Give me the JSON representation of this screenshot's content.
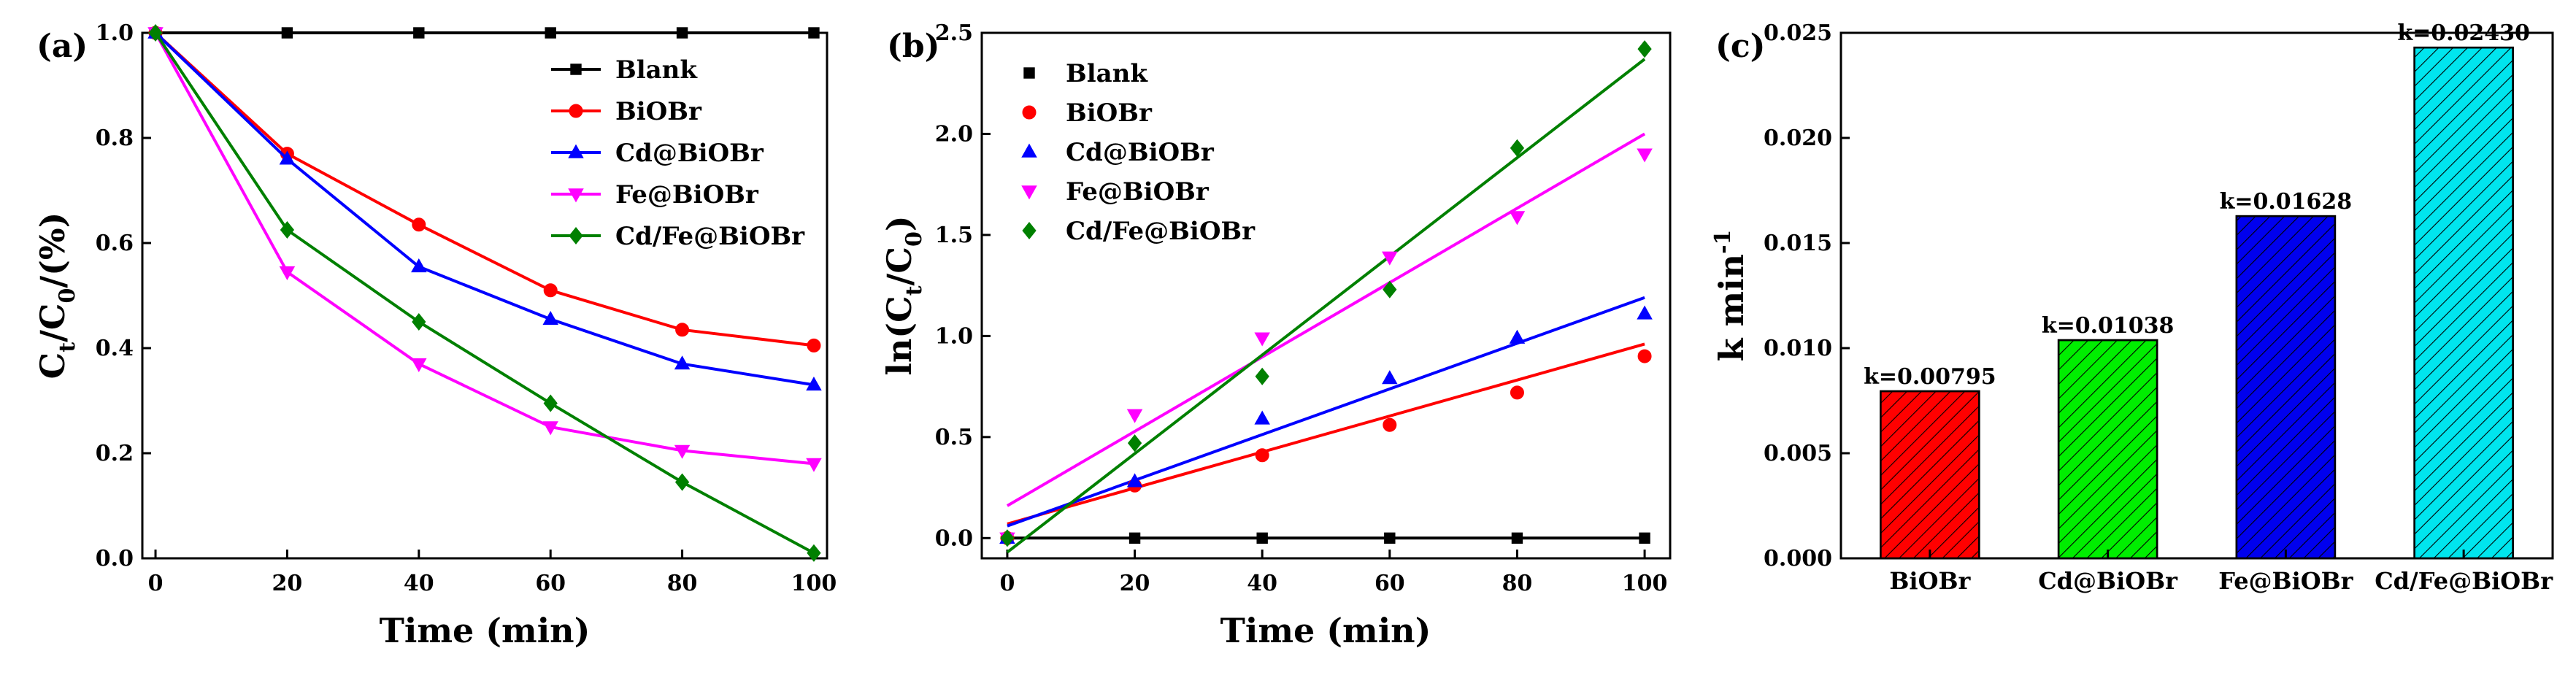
{
  "colors": {
    "Blank": "#000000",
    "BiOBr": "#ff0000",
    "Cd@BiOBr": "#0000ff",
    "Fe@BiOBr": "#ff00ff",
    "Cd/Fe@BiOBr": "#008000",
    "bar_BiOBr": "#ff0000",
    "bar_Cd@BiOBr": "#00ee00",
    "bar_Fe@BiOBr": "#0000ee",
    "bar_Cd/Fe@BiOBr": "#00e5ee"
  },
  "chart_data": [
    {
      "panel": "(a)",
      "type": "line",
      "xlabel": "Time (min)",
      "ylabel_main": "C",
      "ylabel_sub1": "t",
      "ylabel_mid": "/C",
      "ylabel_sub2": "0",
      "ylabel_tail": "/(%)",
      "xlim": [
        -2,
        102
      ],
      "ylim": [
        0.0,
        1.0
      ],
      "xticks": [
        0,
        20,
        40,
        60,
        80,
        100
      ],
      "yticks": [
        0.0,
        0.2,
        0.4,
        0.6,
        0.8,
        1.0
      ],
      "xtick_labels": [
        "0",
        "20",
        "40",
        "60",
        "80",
        "100"
      ],
      "ytick_labels": [
        "0.0",
        "0.2",
        "0.4",
        "0.6",
        "0.8",
        "1.0"
      ],
      "legend_position": "top-right",
      "x": [
        0,
        20,
        40,
        60,
        80,
        100
      ],
      "series": [
        {
          "name": "Blank",
          "marker": "square",
          "values": [
            1.0,
            1.0,
            1.0,
            1.0,
            1.0,
            1.0
          ]
        },
        {
          "name": "BiOBr",
          "marker": "circle",
          "values": [
            1.0,
            0.77,
            0.635,
            0.51,
            0.435,
            0.405
          ]
        },
        {
          "name": "Cd@BiOBr",
          "marker": "triangle-up",
          "values": [
            1.0,
            0.76,
            0.555,
            0.455,
            0.37,
            0.33
          ]
        },
        {
          "name": "Fe@BiOBr",
          "marker": "triangle-down",
          "values": [
            1.0,
            0.545,
            0.37,
            0.25,
            0.205,
            0.18
          ]
        },
        {
          "name": "Cd/Fe@BiOBr",
          "marker": "diamond",
          "values": [
            1.0,
            0.625,
            0.45,
            0.295,
            0.145,
            0.01
          ]
        }
      ]
    },
    {
      "panel": "(b)",
      "type": "scatter",
      "xlabel": "Time (min)",
      "ylabel_main": "ln(C",
      "ylabel_sub1": "t",
      "ylabel_mid": "/C",
      "ylabel_sub2": "0",
      "ylabel_tail": ")",
      "xlim": [
        -4,
        104
      ],
      "ylim": [
        -0.1,
        2.5
      ],
      "xticks": [
        0,
        20,
        40,
        60,
        80,
        100
      ],
      "yticks": [
        0.0,
        0.5,
        1.0,
        1.5,
        2.0,
        2.5
      ],
      "xtick_labels": [
        "0",
        "20",
        "40",
        "60",
        "80",
        "100"
      ],
      "ytick_labels": [
        "0.0",
        "0.5",
        "1.0",
        "1.5",
        "2.0",
        "2.5"
      ],
      "legend_position": "top-left",
      "x": [
        0,
        20,
        40,
        60,
        80,
        100
      ],
      "series": [
        {
          "name": "Blank",
          "marker": "square",
          "values": [
            0.0,
            0.0,
            0.0,
            0.0,
            0.0,
            0.0
          ],
          "fit": [
            0.0,
            0.0
          ]
        },
        {
          "name": "BiOBr",
          "marker": "circle",
          "values": [
            0.0,
            0.26,
            0.41,
            0.56,
            0.72,
            0.9
          ],
          "fit": [
            0.07,
            0.96
          ]
        },
        {
          "name": "Cd@BiOBr",
          "marker": "triangle-up",
          "values": [
            0.0,
            0.28,
            0.59,
            0.79,
            0.99,
            1.11
          ],
          "fit": [
            0.06,
            1.19
          ]
        },
        {
          "name": "Fe@BiOBr",
          "marker": "triangle-down",
          "values": [
            0.0,
            0.61,
            0.99,
            1.39,
            1.59,
            1.9
          ],
          "fit": [
            0.16,
            2.0
          ]
        },
        {
          "name": "Cd/Fe@BiOBr",
          "marker": "diamond",
          "values": [
            0.0,
            0.47,
            0.8,
            1.23,
            1.93,
            2.42
          ],
          "fit": [
            -0.07,
            2.37
          ]
        }
      ]
    },
    {
      "panel": "(c)",
      "type": "bar",
      "ylabel": "k min",
      "ylabel_sup": "-1",
      "ylim": [
        0.0,
        0.025
      ],
      "yticks": [
        0.0,
        0.005,
        0.01,
        0.015,
        0.02,
        0.025
      ],
      "ytick_labels": [
        "0.000",
        "0.005",
        "0.010",
        "0.015",
        "0.020",
        "0.025"
      ],
      "categories": [
        "BiOBr",
        "Cd@BiOBr",
        "Fe@BiOBr",
        "Cd/Fe@BiOBr"
      ],
      "values": [
        0.00795,
        0.01038,
        0.01628,
        0.0243
      ],
      "data_labels": [
        "k=0.00795",
        "k=0.01038",
        "k=0.01628",
        "k=0.02430"
      ]
    }
  ]
}
